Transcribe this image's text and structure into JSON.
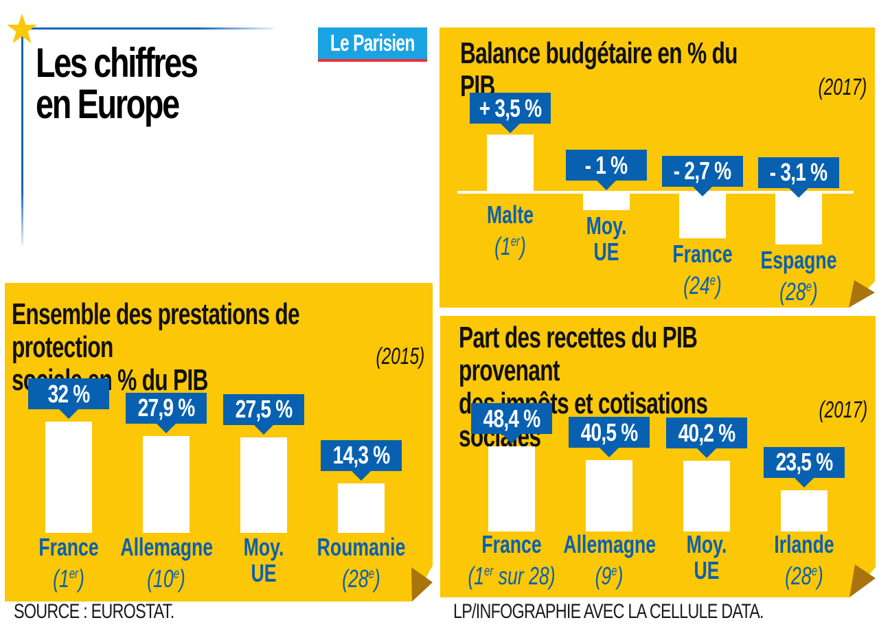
{
  "header": {
    "title": "Les chiffres\nen Europe",
    "logo_text": "Le Parisien"
  },
  "colors": {
    "panel_yellow": "#fcc707",
    "fold_brown": "#a9740d",
    "badge_blue": "#0860b0",
    "label_blue": "#0860b0",
    "logo_blue": "#1aa3e3",
    "logo_red": "#e8333a",
    "frame_blue": "#1565b8",
    "star_yellow": "#fcc707"
  },
  "footer": {
    "source": "SOURCE : EUROSTAT.",
    "credit": "LP/INFOGRAPHIE AVEC LA CELLULE DATA."
  },
  "chart_data": [
    {
      "id": "balance",
      "type": "bar",
      "title": "Balance budgétaire en % du PIB",
      "subtitle": "(2017)",
      "xlabel": "",
      "ylabel": "% du PIB",
      "categories": [
        "Malte",
        "Moy. UE",
        "France",
        "Espagne"
      ],
      "ranks": [
        "1er",
        "",
        "24e",
        "28e"
      ],
      "values": [
        3.5,
        -1,
        -2.7,
        -3.1
      ],
      "value_labels": [
        "+ 3,5 %",
        "- 1 %",
        "- 2,7 %",
        "- 3,1 %"
      ],
      "ylim": [
        -3.5,
        3.5
      ],
      "has_baseline": true
    },
    {
      "id": "protection",
      "type": "bar",
      "title": "Ensemble des prestations de protection\nsociale en % du PIB",
      "subtitle": "(2015)",
      "xlabel": "",
      "ylabel": "% du PIB",
      "categories": [
        "France",
        "Allemagne",
        "Moy. UE",
        "Roumanie"
      ],
      "ranks": [
        "1er",
        "10e",
        "",
        "28e"
      ],
      "values": [
        32,
        27.9,
        27.5,
        14.3
      ],
      "value_labels": [
        "32 %",
        "27,9 %",
        "27,5 %",
        "14,3 %"
      ],
      "ylim": [
        0,
        32
      ]
    },
    {
      "id": "recettes",
      "type": "bar",
      "title": "Part des recettes du PIB provenant\ndes impôts et cotisations sociales",
      "subtitle": "(2017)",
      "xlabel": "",
      "ylabel": "% du PIB",
      "categories": [
        "France",
        "Allemagne",
        "Moy. UE",
        "Irlande"
      ],
      "ranks": [
        "1er sur 28",
        "9e",
        "",
        "28e"
      ],
      "values": [
        48.4,
        40.5,
        40.2,
        23.5
      ],
      "value_labels": [
        "48,4 %",
        "40,5 %",
        "40,2 %",
        "23,5 %"
      ],
      "ylim": [
        0,
        48.4
      ]
    }
  ]
}
